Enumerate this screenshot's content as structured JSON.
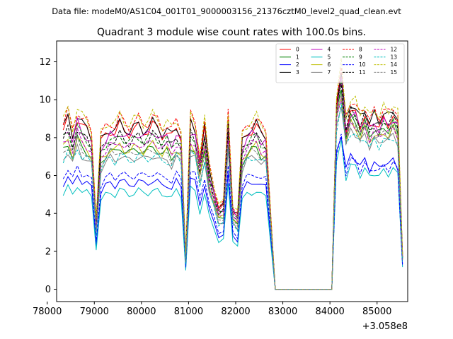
{
  "figure": {
    "suptitle": "Data file: modeM0/AS1C04_001T01_9000003156_21376cztM0_level2_quad_clean.evt"
  },
  "chart_data": {
    "type": "line",
    "title": "Quadrant 3 module wise count rates with 100.0s bins.",
    "xlabel": "",
    "ylabel": "",
    "x_offset_label": "+3.058e8",
    "xlim": [
      78200,
      85650
    ],
    "ylim": [
      -0.65,
      13.1
    ],
    "x_ticks": [
      78000,
      79000,
      80000,
      81000,
      82000,
      83000,
      84000,
      85000
    ],
    "x_tick_labels": [
      "78000",
      "79000",
      "80000",
      "81000",
      "82000",
      "83000",
      "84000",
      "85000"
    ],
    "y_ticks": [
      0,
      2,
      4,
      6,
      8,
      10,
      12
    ],
    "y_tick_labels": [
      "0",
      "2",
      "4",
      "6",
      "8",
      "10",
      "12"
    ],
    "grid": false,
    "legend_position": "top-right",
    "x_start": 78340,
    "x_step": 100,
    "segments": [
      {
        "from": 78340,
        "to": 82640
      },
      {
        "from": 82840,
        "to": 83040,
        "zero": true
      },
      {
        "from": 83040,
        "to": 84040,
        "zero": true
      },
      {
        "from": 84040,
        "to": 85340
      }
    ],
    "series": [
      {
        "name": "0",
        "color": "#ff0000",
        "dash": "solid",
        "base": 8.4,
        "high": 9.6
      },
      {
        "name": "1",
        "color": "#008000",
        "dash": "solid",
        "base": 7.3,
        "high": 9.2
      },
      {
        "name": "2",
        "color": "#0000ff",
        "dash": "solid",
        "base": 5.6,
        "high": 7.2
      },
      {
        "name": "3",
        "color": "#000000",
        "dash": "solid",
        "base": 8.5,
        "high": 10.0
      },
      {
        "name": "4",
        "color": "#bf00bf",
        "dash": "solid",
        "base": 8.1,
        "high": 9.5
      },
      {
        "name": "5",
        "color": "#00bfbf",
        "dash": "solid",
        "base": 5.1,
        "high": 6.7
      },
      {
        "name": "6",
        "color": "#bfbf00",
        "dash": "solid",
        "base": 7.4,
        "high": 8.9
      },
      {
        "name": "7",
        "color": "#808080",
        "dash": "solid",
        "base": 6.9,
        "high": 8.6
      },
      {
        "name": "8",
        "color": "#ff0000",
        "dash": "dashed",
        "base": 8.8,
        "high": 10.2
      },
      {
        "name": "9",
        "color": "#008000",
        "dash": "dashed",
        "base": 7.9,
        "high": 9.3
      },
      {
        "name": "10",
        "color": "#0000ff",
        "dash": "dashed",
        "base": 6.0,
        "high": 7.0
      },
      {
        "name": "11",
        "color": "#000000",
        "dash": "dashed",
        "base": 7.9,
        "high": 9.6
      },
      {
        "name": "12",
        "color": "#bf00bf",
        "dash": "dashed",
        "base": 7.6,
        "high": 9.0
      },
      {
        "name": "13",
        "color": "#00bfbf",
        "dash": "dashed",
        "base": 6.9,
        "high": 8.5
      },
      {
        "name": "14",
        "color": "#bfbf00",
        "dash": "dashed",
        "base": 8.9,
        "high": 10.3
      },
      {
        "name": "15",
        "color": "#808080",
        "dash": "dashed",
        "base": 7.2,
        "high": 8.9
      }
    ],
    "profile_early": [
      1.0,
      1.06,
      0.96,
      1.08,
      1.02,
      1.0,
      0.95,
      0.42,
      0.92,
      0.97,
      1.0,
      0.98,
      1.03,
      1.0,
      0.98,
      1.0,
      1.02,
      0.99,
      1.0,
      1.03,
      1.01,
      0.97,
      0.99,
      0.95,
      1.01,
      0.96,
      0.2,
      1.04,
      1.0,
      0.8,
      1.0,
      0.74,
      0.62,
      0.5,
      0.52,
      1.06,
      0.5,
      0.46,
      0.92,
      0.98,
      1.0,
      1.02,
      0.97,
      0.96
    ],
    "profile_late": [
      1.0,
      1.15,
      0.88,
      0.98,
      0.96,
      0.9,
      0.95,
      0.88,
      0.92,
      0.89,
      0.93,
      0.91,
      0.95,
      0.9,
      0.18
    ]
  }
}
